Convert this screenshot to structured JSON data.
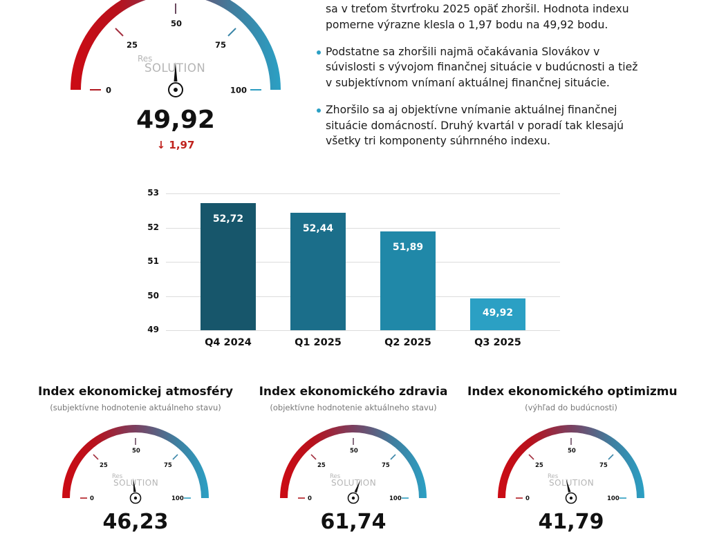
{
  "main_gauge": {
    "value": "49,92",
    "needle_value": 49.92,
    "delta": "↓ 1,97",
    "delta_icon": "arrow-down-icon",
    "ticks": [
      "0",
      "25",
      "50",
      "75",
      "100"
    ],
    "watermark_small": "Res",
    "watermark_large": "SOLUTION"
  },
  "text": {
    "paragraphs": [
      {
        "bullet": false,
        "lines": [
          "sa v treťom štvrťroku 2025 opäť zhoršil. Hodnota indexu",
          "pomerne výrazne klesla o 1,97 bodu na 49,92 bodu."
        ]
      },
      {
        "bullet": true,
        "lines": [
          "Podstatne sa zhoršili najmä očakávania Slovákov v",
          "súvislosti s vývojom finančnej situácie v budúcnosti a tiež",
          "v subjektívnom vnímaní aktuálnej finančnej situácie."
        ]
      },
      {
        "bullet": true,
        "lines": [
          "Zhoršilo sa aj objektívne vnímanie aktuálnej finančnej",
          "situácie domácností. Druhý kvartál v poradí tak klesajú",
          "všetky tri komponenty súhrnného indexu."
        ]
      }
    ]
  },
  "chart_data": [
    {
      "type": "bar",
      "title": "",
      "xlabel": "",
      "ylabel": "",
      "categories": [
        "Q4 2024",
        "Q1 2025",
        "Q2 2025",
        "Q3 2025"
      ],
      "values": [
        52.72,
        52.44,
        51.89,
        49.92
      ],
      "value_labels": [
        "52,72",
        "52,44",
        "51,89",
        "49,92"
      ],
      "colors": [
        "#17566b",
        "#1b6e8a",
        "#2088a8",
        "#2ba0c4"
      ],
      "ylim": [
        49,
        53
      ],
      "yticks": [
        "53",
        "52",
        "51",
        "50",
        "49"
      ],
      "grid": true,
      "legend": "none"
    },
    {
      "type": "gauge",
      "title": "Index ekonomickej atmosféry",
      "subtitle": "(subjektívne hodnotenie aktuálneho stavu)",
      "value": 46.23,
      "range": [
        0,
        100
      ]
    },
    {
      "type": "gauge",
      "title": "Index ekonomického zdravia",
      "subtitle": "(objektívne hodnotenie aktuálneho stavu)",
      "value": 61.74,
      "range": [
        0,
        100
      ]
    },
    {
      "type": "gauge",
      "title": "Index ekonomického optimizmu",
      "subtitle": "(výhľad do budúcnosti)",
      "value": 41.79,
      "range": [
        0,
        100
      ]
    }
  ],
  "sub_gauges": [
    {
      "title": "Index ekonomickej atmosféry",
      "caption": "(subjektívne hodnotenie aktuálneho stavu)",
      "value": "46,23",
      "needle_value": 46.23
    },
    {
      "title": "Index ekonomického zdravia",
      "caption": "(objektívne hodnotenie aktuálneho stavu)",
      "value": "61,74",
      "needle_value": 61.74
    },
    {
      "title": "Index ekonomického optimizmu",
      "caption": "(výhľad do budúcnosti)",
      "value": "41,79",
      "needle_value": 41.79
    }
  ],
  "colors": {
    "gauge_start": "#cc0b14",
    "gauge_mid": "#7a4060",
    "gauge_end": "#2ba0c4",
    "delta_negative": "#c0231e",
    "bullet": "#2ba0c4"
  }
}
